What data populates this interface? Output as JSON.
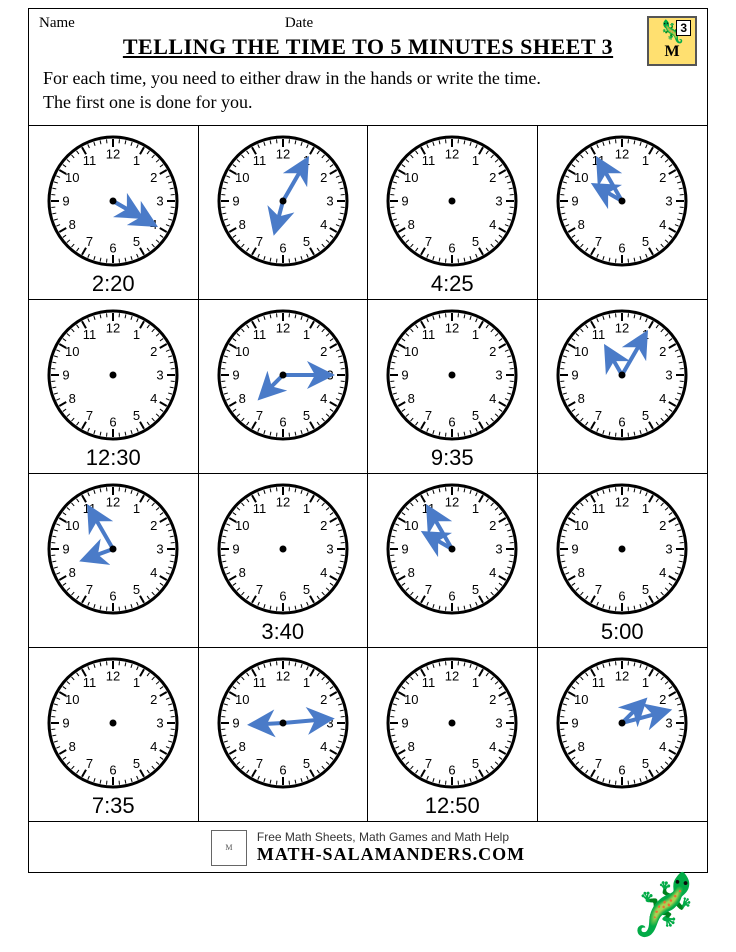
{
  "header": {
    "name_label": "Name",
    "date_label": "Date",
    "grade_badge": "3"
  },
  "title": "TELLING THE TIME TO 5 MINUTES SHEET 3",
  "instructions": "For each time, you need to either draw in the hands or write the time.\nThe first one is done for you.",
  "clock_style": {
    "face_radius": 64,
    "face_fill": "#ffffff",
    "face_stroke": "#000000",
    "face_stroke_width": 3,
    "tick_color": "#000000",
    "major_tick_len": 8,
    "minor_tick_len": 4,
    "numeral_font_size": 13,
    "numeral_color": "#000000",
    "numeral_radius": 47,
    "center_dot_radius": 3.5,
    "hand_color": "#4a7bc8",
    "hand_stroke_width": 4,
    "hour_hand_len": 28,
    "minute_hand_len": 44,
    "arrow_size": 7
  },
  "clocks": [
    {
      "hour_angle": 120,
      "minute_angle": 120,
      "label": "2:20"
    },
    {
      "hour_angle": 195,
      "minute_angle": 30,
      "label": ""
    },
    {
      "hour_angle": null,
      "minute_angle": null,
      "label": "4:25"
    },
    {
      "hour_angle": 300,
      "minute_angle": 330,
      "label": ""
    },
    {
      "hour_angle": null,
      "minute_angle": null,
      "label": "12:30"
    },
    {
      "hour_angle": 225,
      "minute_angle": 90,
      "label": ""
    },
    {
      "hour_angle": null,
      "minute_angle": null,
      "label": "9:35"
    },
    {
      "hour_angle": 330,
      "minute_angle": 30,
      "label": ""
    },
    {
      "hour_angle": 250,
      "minute_angle": 330,
      "label": ""
    },
    {
      "hour_angle": null,
      "minute_angle": null,
      "label": "3:40"
    },
    {
      "hour_angle": 300,
      "minute_angle": 330,
      "label": ""
    },
    {
      "hour_angle": null,
      "minute_angle": null,
      "label": "5:00"
    },
    {
      "hour_angle": null,
      "minute_angle": null,
      "label": "7:35"
    },
    {
      "hour_angle": 267,
      "minute_angle": 85,
      "label": ""
    },
    {
      "hour_angle": null,
      "minute_angle": null,
      "label": "12:50"
    },
    {
      "hour_angle": 45,
      "minute_angle": 75,
      "label": ""
    }
  ],
  "footer": {
    "tagline": "Free Math Sheets, Math Games and Math Help",
    "site": "MATH-SALAMANDERS.COM"
  }
}
